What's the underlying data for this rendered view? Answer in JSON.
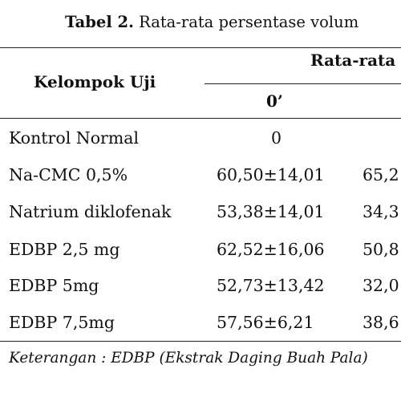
{
  "caption": {
    "label": "Tabel 2.",
    "text": "Rata-rata persentase volum"
  },
  "table": {
    "headers": {
      "group": "Kelompok Uji",
      "mean": "Rata-rata",
      "time0": "0’"
    },
    "rows": [
      {
        "group": "Kontrol Normal",
        "v0": "0",
        "v1": ""
      },
      {
        "group": "Na-CMC 0,5%",
        "v0": "60,50±14,01",
        "v1": "65,2"
      },
      {
        "group": "Natrium diklofenak",
        "v0": "53,38±14,01",
        "v1": "34,3"
      },
      {
        "group": "EDBP 2,5 mg",
        "v0": "62,52±16,06",
        "v1": "50,8"
      },
      {
        "group": "EDBP 5mg",
        "v0": "52,73±13,42",
        "v1": "32,0"
      },
      {
        "group": "EDBP 7,5mg",
        "v0": "57,56±6,21",
        "v1": "38,6"
      }
    ]
  },
  "note": "Keterangan : EDBP (Ekstrak Daging Buah Pala)"
}
